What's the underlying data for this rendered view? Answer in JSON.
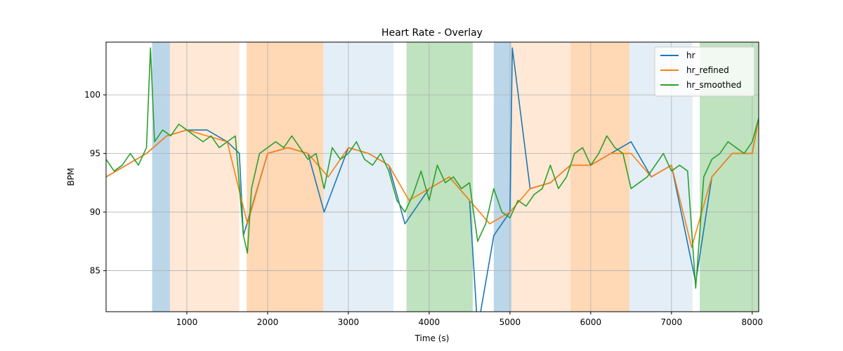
{
  "chart_data": {
    "type": "line",
    "title": "Heart Rate - Overlay",
    "xlabel": "Time (s)",
    "ylabel": "BPM",
    "xlim": [
      0,
      8080
    ],
    "ylim": [
      81.5,
      104.5
    ],
    "xticks": [
      1000,
      2000,
      3000,
      4000,
      5000,
      6000,
      7000,
      8000
    ],
    "yticks": [
      85,
      90,
      95,
      100
    ],
    "grid": true,
    "legend_position": "top-right",
    "series": [
      {
        "name": "hr",
        "color": "#1f77b4",
        "x": [
          0,
          250,
          500,
          750,
          1000,
          1250,
          1500,
          1650,
          1700,
          2000,
          2250,
          2500,
          2700,
          3000,
          3250,
          3500,
          3700,
          4000,
          4250,
          4500,
          4600,
          4800,
          5000,
          5030,
          5250,
          5500,
          5750,
          6000,
          6250,
          6500,
          6750,
          7000,
          7300,
          7500,
          7750,
          8000,
          8080
        ],
        "values": [
          93,
          94,
          95,
          96.5,
          97,
          97,
          96,
          95,
          88,
          95,
          95.5,
          95,
          90,
          95.5,
          95,
          94,
          89,
          92,
          93,
          91,
          80,
          88,
          90,
          104,
          92,
          92.5,
          94,
          94,
          95,
          96,
          93,
          94,
          84,
          93,
          95,
          95,
          98
        ]
      },
      {
        "name": "hr_refined",
        "color": "#ff7f0e",
        "x": [
          0,
          250,
          500,
          750,
          1000,
          1250,
          1500,
          1750,
          2000,
          2250,
          2500,
          2750,
          3000,
          3250,
          3500,
          3750,
          4000,
          4250,
          4500,
          4750,
          5000,
          5250,
          5500,
          5750,
          6000,
          6250,
          6500,
          6750,
          7000,
          7250,
          7500,
          7750,
          8000,
          8080
        ],
        "values": [
          93,
          94,
          95,
          96.5,
          97,
          96.5,
          96,
          89,
          95,
          95.5,
          95,
          93,
          95.5,
          95,
          94,
          91,
          92,
          93,
          91,
          89,
          90,
          92,
          92.5,
          94,
          94,
          95,
          95,
          93,
          94,
          87,
          93,
          95,
          95,
          98
        ]
      },
      {
        "name": "hr_smoothed",
        "color": "#2ca02c",
        "x": [
          0,
          100,
          200,
          300,
          400,
          500,
          550,
          600,
          700,
          800,
          900,
          1000,
          1100,
          1200,
          1300,
          1400,
          1500,
          1600,
          1700,
          1750,
          1800,
          1900,
          2000,
          2100,
          2200,
          2300,
          2400,
          2500,
          2600,
          2700,
          2800,
          2900,
          3000,
          3100,
          3200,
          3300,
          3400,
          3500,
          3600,
          3700,
          3800,
          3900,
          4000,
          4100,
          4200,
          4300,
          4400,
          4500,
          4600,
          4700,
          4800,
          4900,
          5000,
          5100,
          5200,
          5300,
          5400,
          5500,
          5600,
          5700,
          5800,
          5900,
          6000,
          6100,
          6200,
          6300,
          6400,
          6500,
          6600,
          6700,
          6800,
          6900,
          7000,
          7100,
          7200,
          7300,
          7400,
          7500,
          7600,
          7700,
          7800,
          7900,
          8000,
          8080
        ],
        "values": [
          94.5,
          93.5,
          94,
          95,
          94,
          95.5,
          104,
          96,
          97,
          96.5,
          97.5,
          97,
          96.5,
          96,
          96.5,
          95.5,
          96,
          96.5,
          88,
          86.5,
          92,
          95,
          95.5,
          96,
          95.5,
          96.5,
          95.5,
          94.5,
          95,
          92,
          95.5,
          94.5,
          95,
          96,
          94.5,
          94,
          95,
          93.5,
          91,
          90,
          91.5,
          93.5,
          91,
          94,
          92.5,
          93,
          92,
          92.5,
          87.5,
          89,
          92,
          90,
          89.5,
          91,
          90.5,
          91.5,
          92,
          94,
          92,
          93,
          95,
          95.5,
          94,
          95,
          96.5,
          95.5,
          95,
          92,
          92.5,
          93,
          94,
          95,
          93.5,
          94,
          93.5,
          83.5,
          93,
          94.5,
          95,
          96,
          95.5,
          95,
          96,
          98
        ]
      }
    ],
    "shaded_regions": [
      {
        "x0": 570,
        "x1": 790,
        "color": "#1f77b4",
        "opacity": 0.3
      },
      {
        "x0": 790,
        "x1": 1650,
        "color": "#ff7f0e",
        "opacity": 0.17
      },
      {
        "x0": 1740,
        "x1": 2690,
        "color": "#ff7f0e",
        "opacity": 0.3
      },
      {
        "x0": 2690,
        "x1": 3560,
        "color": "#1f77b4",
        "opacity": 0.12
      },
      {
        "x0": 3720,
        "x1": 4540,
        "color": "#2ca02c",
        "opacity": 0.3
      },
      {
        "x0": 4800,
        "x1": 5020,
        "color": "#1f77b4",
        "opacity": 0.3
      },
      {
        "x0": 5020,
        "x1": 5750,
        "color": "#ff7f0e",
        "opacity": 0.17
      },
      {
        "x0": 5750,
        "x1": 6480,
        "color": "#ff7f0e",
        "opacity": 0.3
      },
      {
        "x0": 6480,
        "x1": 7260,
        "color": "#1f77b4",
        "opacity": 0.12
      },
      {
        "x0": 7350,
        "x1": 8080,
        "color": "#2ca02c",
        "opacity": 0.3
      }
    ]
  }
}
